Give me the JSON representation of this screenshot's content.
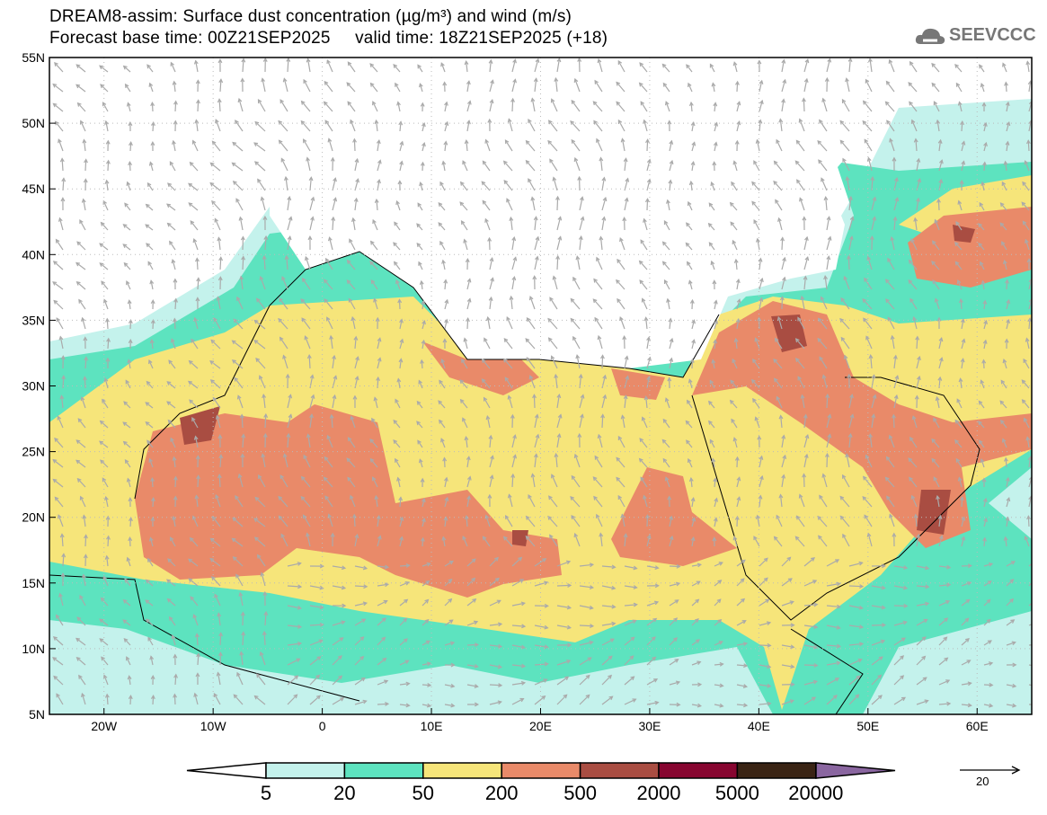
{
  "header": {
    "title": "DREAM8-assim: Surface dust concentration (µg/m³) and wind (m/s)",
    "subtitle": "Forecast base time: 00Z21SEP2025     valid time: 18Z21SEP2025 (+18)",
    "logo_text": "SEEVCCC"
  },
  "axes": {
    "lat_labels": [
      "55N",
      "50N",
      "45N",
      "40N",
      "35N",
      "30N",
      "25N",
      "20N",
      "15N",
      "10N",
      "5N"
    ],
    "lon_labels": [
      "20W",
      "10W",
      "0",
      "10E",
      "20E",
      "30E",
      "40E",
      "50E",
      "60E"
    ]
  },
  "colorbar": {
    "labels": [
      "5",
      "20",
      "50",
      "200",
      "500",
      "2000",
      "5000",
      "20000"
    ],
    "colors": [
      "#c4f2ec",
      "#5de3bf",
      "#f6e57a",
      "#e98a69",
      "#a94d42",
      "#870530",
      "#3a2414",
      "#8a66a0"
    ]
  },
  "wind_reference": {
    "label": "20"
  }
}
